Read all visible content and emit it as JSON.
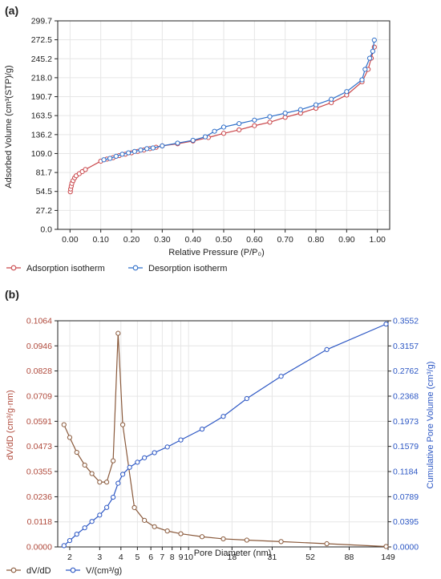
{
  "colors": {
    "adsorption": "#c9464a",
    "desorption": "#2f6fc9",
    "dvdd": "#8a5a3c",
    "dvdd_axis": "#b04a3c",
    "cumulative": "#2c57c4",
    "grid": "#e6e6e6",
    "axis": "#222222"
  },
  "panels": {
    "a_label": "(a)",
    "b_label": "(b)"
  },
  "chart_data": [
    {
      "type": "line",
      "title": "",
      "xlabel": "Relative Pressure (P/P₀)",
      "ylabel": "Adsorbed Volume (cm³(STP)/g)",
      "xlim": [
        -0.04,
        1.04
      ],
      "ylim": [
        0,
        299.7
      ],
      "x_ticks": [
        0.0,
        0.1,
        0.2,
        0.3,
        0.4,
        0.5,
        0.6,
        0.7,
        0.8,
        0.9,
        1.0
      ],
      "x_tick_labels": [
        "0.00",
        "0.10",
        "0.20",
        "0.30",
        "0.40",
        "0.50",
        "0.60",
        "0.70",
        "0.80",
        "0.90",
        "1.00"
      ],
      "y_ticks": [
        0.0,
        27.2,
        54.5,
        81.7,
        109.0,
        136.2,
        163.5,
        190.7,
        218.0,
        245.2,
        272.5,
        299.7
      ],
      "y_tick_labels": [
        "0.0",
        "27.2",
        "54.5",
        "81.7",
        "109.0",
        "136.2",
        "163.5",
        "190.7",
        "218.0",
        "245.2",
        "272.5",
        "299.7"
      ],
      "grid": true,
      "legend_position": "bottom",
      "series": [
        {
          "name": "Adsorption isotherm",
          "x": [
            0.001,
            0.002,
            0.004,
            0.006,
            0.01,
            0.015,
            0.02,
            0.03,
            0.04,
            0.05,
            0.1,
            0.12,
            0.14,
            0.16,
            0.18,
            0.2,
            0.22,
            0.24,
            0.26,
            0.28,
            0.3,
            0.35,
            0.4,
            0.45,
            0.5,
            0.55,
            0.6,
            0.65,
            0.7,
            0.75,
            0.8,
            0.85,
            0.9,
            0.95,
            0.97,
            0.98,
            0.99
          ],
          "y": [
            54,
            58,
            62,
            66,
            70,
            74,
            77,
            80,
            83,
            86,
            98,
            101,
            103,
            106,
            108,
            110,
            112,
            114,
            116,
            118,
            120,
            123,
            127,
            132,
            138,
            143,
            149,
            154,
            161,
            167,
            174,
            182,
            193,
            212,
            230,
            246,
            262
          ]
        },
        {
          "name": "Desorption isotherm",
          "x": [
            0.11,
            0.13,
            0.15,
            0.17,
            0.19,
            0.21,
            0.23,
            0.25,
            0.27,
            0.3,
            0.35,
            0.4,
            0.44,
            0.47,
            0.5,
            0.55,
            0.6,
            0.65,
            0.7,
            0.75,
            0.8,
            0.85,
            0.9,
            0.95,
            0.96,
            0.975,
            0.985,
            0.99
          ],
          "y": [
            100,
            102,
            105,
            108,
            110,
            112,
            114,
            116,
            117,
            120,
            124,
            128,
            133,
            141,
            147,
            152,
            157,
            162,
            167,
            172,
            179,
            187,
            198,
            215,
            230,
            246,
            256,
            272
          ]
        }
      ]
    },
    {
      "type": "line",
      "title": "",
      "xlabel": "Pore Diameter (nm)",
      "ylabel": "dV/dD (cm³/g·nm)",
      "y2label": "Cumulative Pore Volume (cm³/g)",
      "x_scale": "log",
      "xlim": [
        1.7,
        149
      ],
      "x_ticks": [
        2,
        3,
        4,
        5,
        6,
        7,
        8,
        9,
        10,
        18,
        31,
        52,
        88,
        149
      ],
      "x_tick_labels": [
        "2",
        "3",
        "4",
        "5",
        "6",
        "7",
        "8",
        "9",
        "10",
        "18",
        "31",
        "52",
        "88",
        "149"
      ],
      "ylim": [
        0,
        0.1064
      ],
      "y_ticks": [
        0.0,
        0.0118,
        0.0236,
        0.0355,
        0.0473,
        0.0591,
        0.0709,
        0.0828,
        0.0946,
        0.1064
      ],
      "y_tick_labels": [
        "0.0000",
        "0.0118",
        "0.0236",
        "0.0355",
        "0.0473",
        "0.0591",
        "0.0709",
        "0.0828",
        "0.0946",
        "0.1064"
      ],
      "y2lim": [
        0,
        0.3552
      ],
      "y2_ticks": [
        0.0,
        0.0395,
        0.0789,
        0.1184,
        0.1579,
        0.1973,
        0.2368,
        0.2762,
        0.3157,
        0.3552
      ],
      "y2_tick_labels": [
        "0.0000",
        "0.0395",
        "0.0789",
        "0.1184",
        "0.1579",
        "0.1973",
        "0.2368",
        "0.2762",
        "0.3157",
        "0.3552"
      ],
      "grid": true,
      "legend_position": "bottom",
      "series": [
        {
          "name": "dV/dD",
          "axis": "left",
          "x": [
            1.85,
            2.0,
            2.2,
            2.45,
            2.7,
            3.0,
            3.3,
            3.6,
            3.85,
            4.1,
            4.8,
            5.5,
            6.3,
            7.5,
            9.0,
            12,
            16,
            22,
            35,
            65,
            145
          ],
          "y": [
            0.0575,
            0.0515,
            0.0445,
            0.0385,
            0.0345,
            0.0305,
            0.0305,
            0.0405,
            0.1005,
            0.0575,
            0.0185,
            0.0125,
            0.0095,
            0.0075,
            0.0062,
            0.0048,
            0.0038,
            0.0032,
            0.0025,
            0.0015,
            0.0002
          ]
        },
        {
          "name": "V/(cm³/g)",
          "axis": "right",
          "x": [
            1.85,
            2.0,
            2.2,
            2.45,
            2.7,
            3.0,
            3.3,
            3.6,
            3.85,
            4.1,
            4.5,
            5.0,
            5.5,
            6.3,
            7.5,
            9.0,
            12,
            16,
            22,
            35,
            65,
            145
          ],
          "y": [
            0.002,
            0.01,
            0.02,
            0.03,
            0.04,
            0.05,
            0.062,
            0.078,
            0.1,
            0.114,
            0.125,
            0.133,
            0.14,
            0.148,
            0.157,
            0.168,
            0.185,
            0.205,
            0.233,
            0.268,
            0.31,
            0.35
          ]
        }
      ]
    }
  ]
}
